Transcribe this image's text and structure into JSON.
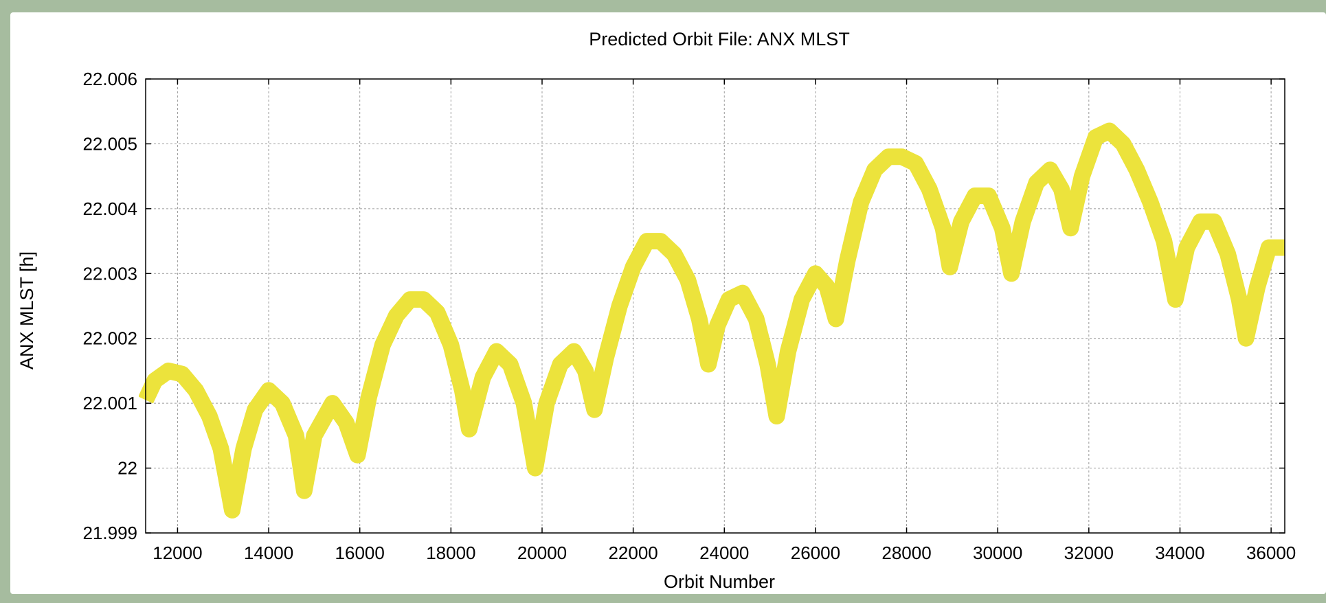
{
  "chart_data": {
    "type": "line",
    "title": "Predicted Orbit File: ANX MLST",
    "xlabel": "Orbit Number",
    "ylabel": "ANX MLST [h]",
    "xlim": [
      11300,
      36300
    ],
    "ylim": [
      21.999,
      22.006
    ],
    "xticks": [
      12000,
      14000,
      16000,
      18000,
      20000,
      22000,
      24000,
      26000,
      28000,
      30000,
      32000,
      34000,
      36000
    ],
    "yticks": [
      21.999,
      22,
      22.001,
      22.002,
      22.003,
      22.004,
      22.005,
      22.006
    ],
    "ytick_labels": [
      "21.999",
      "22",
      "22.001",
      "22.002",
      "22.003",
      "22.004",
      "22.005",
      "22.006"
    ],
    "xtick_labels": [
      "12000",
      "14000",
      "16000",
      "18000",
      "20000",
      "22000",
      "24000",
      "26000",
      "28000",
      "30000",
      "32000",
      "34000",
      "36000"
    ],
    "grid": true,
    "legend": "none",
    "series": [
      {
        "color": "#ece33c",
        "points": [
          [
            11300,
            22.00105
          ],
          [
            11500,
            22.00135
          ],
          [
            11800,
            22.0015
          ],
          [
            12100,
            22.00145
          ],
          [
            12400,
            22.0012
          ],
          [
            12700,
            22.0008
          ],
          [
            12950,
            22.0003
          ],
          [
            13200,
            21.99935
          ],
          [
            13450,
            22.0003
          ],
          [
            13700,
            22.0009
          ],
          [
            14000,
            22.0012
          ],
          [
            14300,
            22.001
          ],
          [
            14600,
            22.0005
          ],
          [
            14780,
            21.99965
          ],
          [
            15000,
            22.0005
          ],
          [
            15400,
            22.001
          ],
          [
            15700,
            22.0007
          ],
          [
            15950,
            22.0002
          ],
          [
            16200,
            22.0011
          ],
          [
            16500,
            22.0019
          ],
          [
            16800,
            22.00235
          ],
          [
            17100,
            22.0026
          ],
          [
            17400,
            22.0026
          ],
          [
            17700,
            22.0024
          ],
          [
            18000,
            22.0019
          ],
          [
            18250,
            22.0012
          ],
          [
            18400,
            22.0006
          ],
          [
            18700,
            22.0014
          ],
          [
            19000,
            22.0018
          ],
          [
            19300,
            22.0016
          ],
          [
            19600,
            22.001
          ],
          [
            19850,
            22.0
          ],
          [
            20100,
            22.001
          ],
          [
            20400,
            22.0016
          ],
          [
            20700,
            22.0018
          ],
          [
            20950,
            22.0015
          ],
          [
            21150,
            22.0009
          ],
          [
            21400,
            22.0017
          ],
          [
            21700,
            22.0025
          ],
          [
            22000,
            22.0031
          ],
          [
            22300,
            22.0035
          ],
          [
            22600,
            22.0035
          ],
          [
            22900,
            22.0033
          ],
          [
            23200,
            22.0029
          ],
          [
            23450,
            22.0023
          ],
          [
            23650,
            22.0016
          ],
          [
            23850,
            22.0022
          ],
          [
            24100,
            22.0026
          ],
          [
            24400,
            22.0027
          ],
          [
            24700,
            22.0023
          ],
          [
            24950,
            22.0016
          ],
          [
            25150,
            22.0008
          ],
          [
            25400,
            22.0018
          ],
          [
            25700,
            22.0026
          ],
          [
            26000,
            22.003
          ],
          [
            26250,
            22.0028
          ],
          [
            26450,
            22.0023
          ],
          [
            26700,
            22.0032
          ],
          [
            27000,
            22.0041
          ],
          [
            27300,
            22.0046
          ],
          [
            27600,
            22.0048
          ],
          [
            27900,
            22.0048
          ],
          [
            28200,
            22.0047
          ],
          [
            28500,
            22.0043
          ],
          [
            28800,
            22.0037
          ],
          [
            28950,
            22.0031
          ],
          [
            29200,
            22.0038
          ],
          [
            29500,
            22.0042
          ],
          [
            29800,
            22.0042
          ],
          [
            30100,
            22.0037
          ],
          [
            30300,
            22.003
          ],
          [
            30550,
            22.0038
          ],
          [
            30850,
            22.0044
          ],
          [
            31150,
            22.0046
          ],
          [
            31400,
            22.0043
          ],
          [
            31600,
            22.0037
          ],
          [
            31850,
            22.0045
          ],
          [
            32150,
            22.0051
          ],
          [
            32450,
            22.0052
          ],
          [
            32750,
            22.005
          ],
          [
            33050,
            22.0046
          ],
          [
            33350,
            22.0041
          ],
          [
            33650,
            22.0035
          ],
          [
            33900,
            22.0026
          ],
          [
            34150,
            22.0034
          ],
          [
            34450,
            22.0038
          ],
          [
            34750,
            22.0038
          ],
          [
            35050,
            22.0033
          ],
          [
            35300,
            22.0026
          ],
          [
            35450,
            22.002
          ],
          [
            35700,
            22.0028
          ],
          [
            35950,
            22.0034
          ],
          [
            36300,
            22.0034
          ]
        ]
      }
    ]
  }
}
